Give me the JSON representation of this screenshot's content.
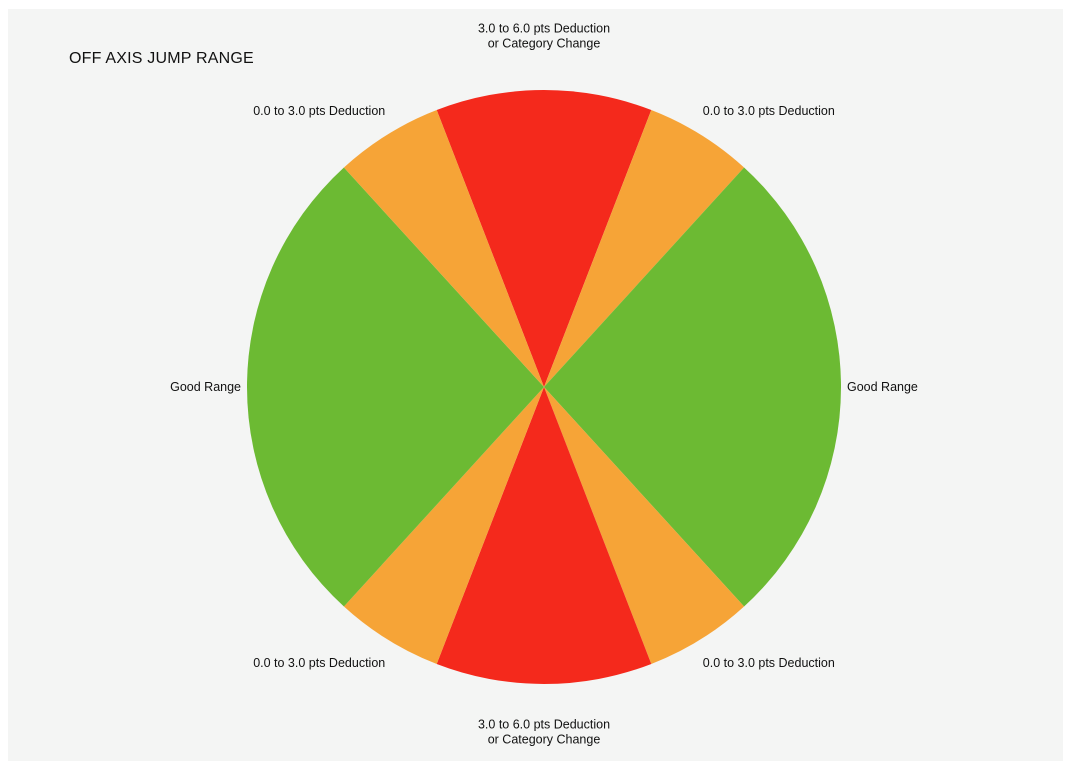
{
  "chart_data": {
    "type": "pie",
    "title": "OFF AXIS JUMP RANGE",
    "colors": {
      "good": "#6cba33",
      "minor": "#f6a437",
      "major": "#f4291c",
      "background": "#f4f5f4"
    },
    "slices": [
      {
        "label": "3.0 to 6.0 pts Deduction\nor Category Change",
        "value": 40,
        "color_key": "major"
      },
      {
        "label": "0.0 to 3.0 pts Deduction",
        "value": 20,
        "color_key": "minor"
      },
      {
        "label": "Good Range",
        "value": 90,
        "color_key": "good"
      },
      {
        "label": "0.0 to 3.0 pts Deduction",
        "value": 20,
        "color_key": "minor"
      },
      {
        "label": "3.0 to 6.0 pts Deduction\nor Category Change",
        "value": 40,
        "color_key": "major"
      },
      {
        "label": "0.0 to 3.0 pts Deduction",
        "value": 20,
        "color_key": "minor"
      },
      {
        "label": "Good Range",
        "value": 90,
        "color_key": "good"
      },
      {
        "label": "0.0 to 3.0 pts Deduction",
        "value": 20,
        "color_key": "minor"
      }
    ]
  }
}
